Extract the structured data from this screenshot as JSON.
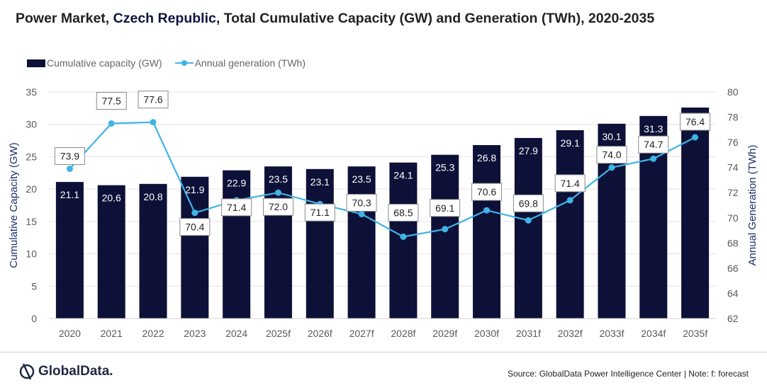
{
  "title": {
    "part1": "Power Market, ",
    "highlight": "Czech Republic",
    "part2": ", Total Cumulative Capacity (GW) and Generation (TWh), 2020-2035"
  },
  "footer": {
    "logo_text": "GlobalData.",
    "source": "Source: GlobalData Power Intelligence Center | Note: f: forecast"
  },
  "colors": {
    "bar": "#0d1138",
    "line": "#3fb4e6",
    "axis_text": "#595959",
    "axis_title": "#1f2f6b"
  },
  "chart_data": {
    "type": "bar",
    "title": "Power Market, Czech Republic, Total Cumulative Capacity (GW) and Generation (TWh), 2020-2035",
    "categories": [
      "2020",
      "2021",
      "2022",
      "2023",
      "2024",
      "2025f",
      "2026f",
      "2027f",
      "2028f",
      "2029f",
      "2030f",
      "2031f",
      "2032f",
      "2033f",
      "2034f",
      "2035f"
    ],
    "series": [
      {
        "name": "Cumulative capacity (GW)",
        "type": "bar",
        "axis": "left",
        "values": [
          21.1,
          20.6,
          20.8,
          21.9,
          22.9,
          23.5,
          23.1,
          23.5,
          24.1,
          25.3,
          26.8,
          27.9,
          29.1,
          30.1,
          31.3,
          32.6
        ]
      },
      {
        "name": "Annual generation (TWh)",
        "type": "line",
        "axis": "right",
        "values": [
          73.9,
          77.5,
          77.6,
          70.4,
          71.4,
          72.0,
          71.1,
          70.3,
          68.5,
          69.1,
          70.6,
          69.8,
          71.4,
          74.0,
          74.7,
          76.4
        ]
      }
    ],
    "ylabel": "Cumulative Capacity (GW)",
    "y2label": "Annual Generation (TWh)",
    "ylim": [
      0,
      35
    ],
    "yticks": [
      "0",
      "5",
      "10",
      "15",
      "20",
      "25",
      "30",
      "35"
    ],
    "y2lim": [
      62,
      80
    ],
    "y2ticks": [
      "62",
      "64",
      "66",
      "68",
      "70",
      "72",
      "74",
      "76",
      "78",
      "80"
    ],
    "legend": "top-left",
    "grid": true
  }
}
